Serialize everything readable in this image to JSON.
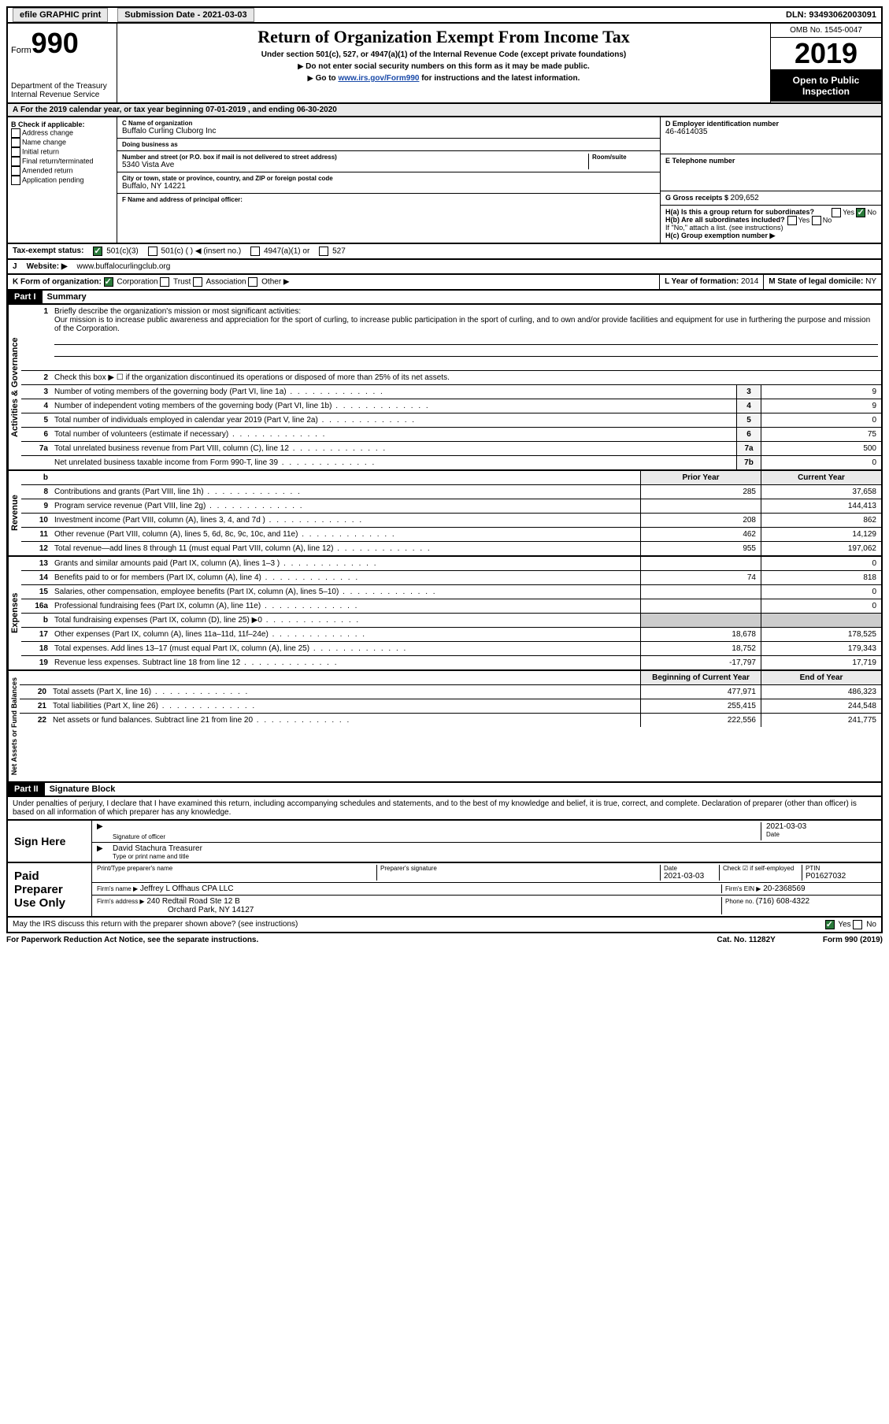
{
  "topbar": {
    "efile": "efile GRAPHIC print",
    "submission_label": "Submission Date - ",
    "submission_date": "2021-03-03",
    "dln_label": "DLN: ",
    "dln": "93493062003091"
  },
  "header": {
    "form_label": "Form",
    "form_num": "990",
    "dept": "Department of the Treasury\nInternal Revenue Service",
    "title": "Return of Organization Exempt From Income Tax",
    "sub1": "Under section 501(c), 527, or 4947(a)(1) of the Internal Revenue Code (except private foundations)",
    "sub2": "Do not enter social security numbers on this form as it may be made public.",
    "sub3_pre": "Go to ",
    "sub3_link": "www.irs.gov/Form990",
    "sub3_post": " for instructions and the latest information.",
    "omb": "OMB No. 1545-0047",
    "year": "2019",
    "open": "Open to Public Inspection"
  },
  "rowA": "For the 2019 calendar year, or tax year beginning 07-01-2019    , and ending 06-30-2020",
  "colB": {
    "title": "B Check if applicable:",
    "items": [
      "Address change",
      "Name change",
      "Initial return",
      "Final return/terminated",
      "Amended return",
      "Application pending"
    ]
  },
  "colC": {
    "name_label": "C Name of organization",
    "name": "Buffalo Curling Cluborg Inc",
    "dba_label": "Doing business as",
    "dba": "",
    "addr_label": "Number and street (or P.O. box if mail is not delivered to street address)",
    "room_label": "Room/suite",
    "addr": "5340 Vista Ave",
    "city_label": "City or town, state or province, country, and ZIP or foreign postal code",
    "city": "Buffalo, NY  14221",
    "officer_label": "F  Name and address of principal officer:",
    "officer": ""
  },
  "colD": {
    "ein_label": "D Employer identification number",
    "ein": "46-4614035",
    "phone_label": "E Telephone number",
    "phone": "",
    "gross_label": "G Gross receipts $ ",
    "gross": "209,652"
  },
  "colH": {
    "ha": "H(a)  Is this a group return for subordinates?",
    "hb": "H(b)  Are all subordinates included?",
    "hb_note": "If \"No,\" attach a list. (see instructions)",
    "hc": "H(c)  Group exemption number ▶",
    "yes": "Yes",
    "no": "No"
  },
  "taxstatus": {
    "label": "Tax-exempt status:",
    "opt1": "501(c)(3)",
    "opt2": "501(c) (  ) ◀ (insert no.)",
    "opt3": "4947(a)(1) or",
    "opt4": "527"
  },
  "rowJ": {
    "label": "J",
    "text": "Website: ▶",
    "url": "www.buffalocurlingclub.org"
  },
  "rowK": {
    "label": "K Form of organization:",
    "opts": [
      "Corporation",
      "Trust",
      "Association",
      "Other ▶"
    ],
    "L_label": "L Year of formation: ",
    "L_val": "2014",
    "M_label": "M State of legal domicile: ",
    "M_val": "NY"
  },
  "part1": {
    "header": "Part I",
    "title": "Summary",
    "line1_label": "1",
    "line1_text": "Briefly describe the organization's mission or most significant activities:",
    "mission": "Our mission is to increase public awareness and appreciation for the sport of curling, to increase public participation in the sport of curling, and to own and/or provide facilities and equipment for use in furthering the purpose and mission of the Corporation.",
    "sections": {
      "governance": "Activities & Governance",
      "revenue": "Revenue",
      "expenses": "Expenses",
      "netassets": "Net Assets or Fund Balances"
    },
    "lines_gov": [
      {
        "n": "2",
        "d": "Check this box ▶ ☐  if the organization discontinued its operations or disposed of more than 25% of its net assets."
      },
      {
        "n": "3",
        "d": "Number of voting members of the governing body (Part VI, line 1a)",
        "box": "3",
        "v": "9"
      },
      {
        "n": "4",
        "d": "Number of independent voting members of the governing body (Part VI, line 1b)",
        "box": "4",
        "v": "9"
      },
      {
        "n": "5",
        "d": "Total number of individuals employed in calendar year 2019 (Part V, line 2a)",
        "box": "5",
        "v": "0"
      },
      {
        "n": "6",
        "d": "Total number of volunteers (estimate if necessary)",
        "box": "6",
        "v": "75"
      },
      {
        "n": "7a",
        "d": "Total unrelated business revenue from Part VIII, column (C), line 12",
        "box": "7a",
        "v": "500"
      },
      {
        "n": "",
        "d": "Net unrelated business taxable income from Form 990-T, line 39",
        "box": "7b",
        "v": "0"
      }
    ],
    "col_headers": {
      "prior": "Prior Year",
      "current": "Current Year",
      "begin": "Beginning of Current Year",
      "end": "End of Year"
    },
    "lines_rev": [
      {
        "n": "8",
        "d": "Contributions and grants (Part VIII, line 1h)",
        "p": "285",
        "c": "37,658"
      },
      {
        "n": "9",
        "d": "Program service revenue (Part VIII, line 2g)",
        "p": "",
        "c": "144,413"
      },
      {
        "n": "10",
        "d": "Investment income (Part VIII, column (A), lines 3, 4, and 7d )",
        "p": "208",
        "c": "862"
      },
      {
        "n": "11",
        "d": "Other revenue (Part VIII, column (A), lines 5, 6d, 8c, 9c, 10c, and 11e)",
        "p": "462",
        "c": "14,129"
      },
      {
        "n": "12",
        "d": "Total revenue—add lines 8 through 11 (must equal Part VIII, column (A), line 12)",
        "p": "955",
        "c": "197,062"
      }
    ],
    "lines_exp": [
      {
        "n": "13",
        "d": "Grants and similar amounts paid (Part IX, column (A), lines 1–3 )",
        "p": "",
        "c": "0"
      },
      {
        "n": "14",
        "d": "Benefits paid to or for members (Part IX, column (A), line 4)",
        "p": "74",
        "c": "818"
      },
      {
        "n": "15",
        "d": "Salaries, other compensation, employee benefits (Part IX, column (A), lines 5–10)",
        "p": "",
        "c": "0"
      },
      {
        "n": "16a",
        "d": "Professional fundraising fees (Part IX, column (A), line 11e)",
        "p": "",
        "c": "0"
      },
      {
        "n": "b",
        "d": "Total fundraising expenses (Part IX, column (D), line 25) ▶0",
        "p": "gray",
        "c": "gray"
      },
      {
        "n": "17",
        "d": "Other expenses (Part IX, column (A), lines 11a–11d, 11f–24e)",
        "p": "18,678",
        "c": "178,525"
      },
      {
        "n": "18",
        "d": "Total expenses. Add lines 13–17 (must equal Part IX, column (A), line 25)",
        "p": "18,752",
        "c": "179,343"
      },
      {
        "n": "19",
        "d": "Revenue less expenses. Subtract line 18 from line 12",
        "p": "-17,797",
        "c": "17,719"
      }
    ],
    "lines_net": [
      {
        "n": "20",
        "d": "Total assets (Part X, line 16)",
        "p": "477,971",
        "c": "486,323"
      },
      {
        "n": "21",
        "d": "Total liabilities (Part X, line 26)",
        "p": "255,415",
        "c": "244,548"
      },
      {
        "n": "22",
        "d": "Net assets or fund balances. Subtract line 21 from line 20",
        "p": "222,556",
        "c": "241,775"
      }
    ]
  },
  "part2": {
    "header": "Part II",
    "title": "Signature Block",
    "declaration": "Under penalties of perjury, I declare that I have examined this return, including accompanying schedules and statements, and to the best of my knowledge and belief, it is true, correct, and complete. Declaration of preparer (other than officer) is based on all information of which preparer has any knowledge.",
    "sign_here": "Sign Here",
    "sig_officer": "Signature of officer",
    "sig_date_label": "Date",
    "sig_date": "2021-03-03",
    "officer_name": "David Stachura  Treasurer",
    "officer_type": "Type or print name and title",
    "paid_prep": "Paid Preparer Use Only",
    "prep_name_label": "Print/Type preparer's name",
    "prep_sig_label": "Preparer's signature",
    "prep_date_label": "Date",
    "prep_date": "2021-03-03",
    "self_emp": "Check ☑ if self-employed",
    "ptin_label": "PTIN",
    "ptin": "P01627032",
    "firm_name_label": "Firm's name    ▶",
    "firm_name": "Jeffrey L Offhaus CPA LLC",
    "firm_ein_label": "Firm's EIN ▶",
    "firm_ein": "20-2368569",
    "firm_addr_label": "Firm's address ▶",
    "firm_addr": "240 Redtail Road Ste 12 B",
    "firm_city": "Orchard Park, NY  14127",
    "firm_phone_label": "Phone no. ",
    "firm_phone": "(716) 608-4322",
    "discuss": "May the IRS discuss this return with the preparer shown above? (see instructions)",
    "yes": "Yes",
    "no": "No"
  },
  "footer": {
    "left": "For Paperwork Reduction Act Notice, see the separate instructions.",
    "mid": "Cat. No. 11282Y",
    "right": "Form 990 (2019)"
  }
}
